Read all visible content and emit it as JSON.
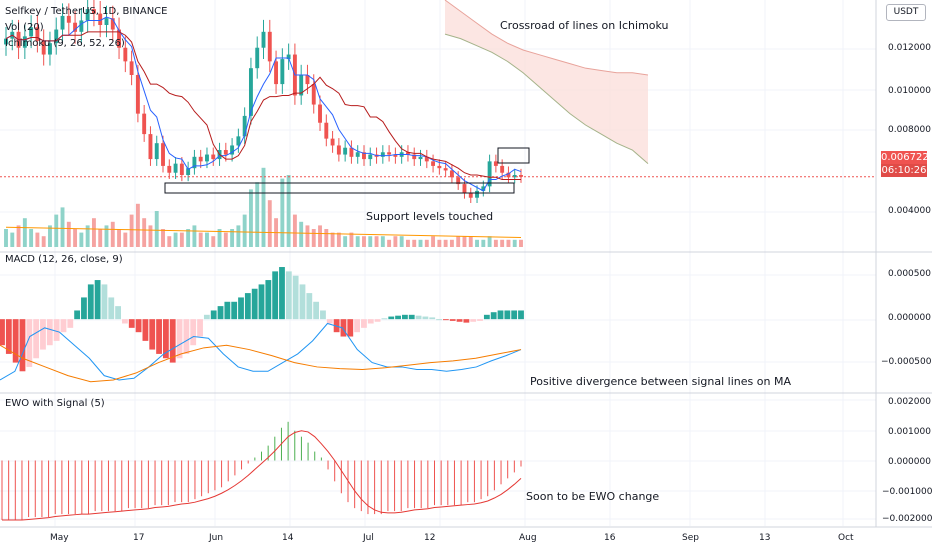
{
  "header": {
    "symbol": "Selfkey / TetherUS, 1D, BINANCE",
    "volume_label": "Vol (20)",
    "ichimoku_label": "Ichimoku (9, 26, 52, 26)",
    "currency": "USDT"
  },
  "price_axis": {
    "ticks": [
      "0.012000",
      "0.010000",
      "0.008000",
      "0.004000"
    ],
    "last_price": "0.006722",
    "countdown": "06:10:26"
  },
  "macd_axis": {
    "ticks": [
      "0.000500",
      "0.000000",
      "−0.000500"
    ]
  },
  "ewo_axis": {
    "ticks": [
      "0.002000",
      "0.001000",
      "0.000000",
      "−0.001000",
      "−0.002000"
    ]
  },
  "time_axis": [
    "May",
    "17",
    "Jun",
    "14",
    "Jul",
    "12",
    "Aug",
    "16",
    "Sep",
    "13",
    "Oct"
  ],
  "macd_label": "MACD (12, 26, close, 9)",
  "ewo_label": "EWO with Signal (5)",
  "annotations": {
    "ichimoku": "Crossroad of lines on Ichimoku",
    "support": "Support levels touched",
    "divergence": "Positive divergence between signal lines on MA",
    "ewo": "Soon to be EWO change"
  },
  "colors": {
    "up": "#26a69a",
    "down": "#ef5350",
    "cloud": "#fbe0dc",
    "tenkan": "#2962ff",
    "kijun": "#b71c1c",
    "signal": "#f57c00",
    "macd_line": "#2196f3",
    "ewo_up": "#4caf50",
    "ewo_down": "#ef5350"
  },
  "chart_data": [
    {
      "type": "candlestick",
      "title": "Selfkey / TetherUS, 1D, BINANCE",
      "x_range": [
        "2021-04-24",
        "2021-10-08"
      ],
      "y_range": [
        0.0035,
        0.0145
      ],
      "last_price": 0.006722,
      "close_series": [
        0.0128,
        0.0131,
        0.0124,
        0.0129,
        0.0133,
        0.0127,
        0.0121,
        0.0126,
        0.0132,
        0.0138,
        0.0135,
        0.0131,
        0.0136,
        0.0141,
        0.0139,
        0.0134,
        0.0137,
        0.0132,
        0.0124,
        0.0118,
        0.0112,
        0.0095,
        0.0086,
        0.0075,
        0.0082,
        0.0072,
        0.0069,
        0.0073,
        0.0068,
        0.0071,
        0.0076,
        0.0074,
        0.0077,
        0.0075,
        0.0079,
        0.0077,
        0.0081,
        0.0085,
        0.0094,
        0.0115,
        0.0124,
        0.0131,
        0.0118,
        0.0108,
        0.0119,
        0.0121,
        0.0103,
        0.0112,
        0.0108,
        0.0099,
        0.0091,
        0.0084,
        0.0081,
        0.0077,
        0.008,
        0.0076,
        0.0078,
        0.0075,
        0.0077,
        0.0076,
        0.0078,
        0.0077,
        0.0076,
        0.0078,
        0.0077,
        0.0075,
        0.0076,
        0.0074,
        0.0072,
        0.0071,
        0.007,
        0.0067,
        0.0064,
        0.006,
        0.0058,
        0.0061,
        0.0063,
        0.0074,
        0.0072,
        0.0069,
        0.0067,
        0.0068,
        0.00672
      ],
      "volume_series": [
        5,
        4,
        6,
        8,
        5,
        4,
        3,
        6,
        9,
        11,
        7,
        5,
        4,
        6,
        8,
        5,
        6,
        7,
        5,
        4,
        9,
        12,
        8,
        6,
        10,
        5,
        3,
        4,
        4,
        5,
        6,
        4,
        4,
        3,
        5,
        4,
        5,
        6,
        9,
        16,
        18,
        22,
        13,
        8,
        19,
        20,
        9,
        7,
        6,
        5,
        6,
        5,
        4,
        4,
        3,
        4,
        3,
        3,
        3,
        3,
        3,
        2,
        3,
        3,
        2,
        2,
        2,
        2,
        3,
        2,
        2,
        2,
        3,
        3,
        3,
        2,
        2,
        3,
        2,
        2,
        2,
        2,
        2
      ],
      "ichimoku": "Ichimoku (9, 26, 52, 26)"
    },
    {
      "type": "histogram",
      "title": "MACD (12, 26, close, 9)",
      "y_range": [
        -0.00085,
        0.00075
      ],
      "histogram": [
        -0.0003,
        -0.0004,
        -0.0005,
        -0.0006,
        -0.00055,
        -0.00045,
        -0.00035,
        -0.0003,
        -0.00025,
        -0.00015,
        -0.0001,
        0.0001,
        0.00025,
        0.0004,
        0.00045,
        0.0004,
        0.00025,
        0.00015,
        -5e-05,
        -0.0001,
        -0.00015,
        -0.00025,
        -0.00035,
        -0.0004,
        -0.00045,
        -0.0005,
        -0.00045,
        -0.0004,
        -0.0003,
        -0.0002,
        5e-05,
        0.0001,
        0.00015,
        0.0002,
        0.0002,
        0.00025,
        0.0003,
        0.00035,
        0.0004,
        0.00045,
        0.00055,
        0.0006,
        0.00055,
        0.0005,
        0.0004,
        0.0003,
        0.0002,
        0.0001,
        -5e-05,
        -0.00015,
        -0.0002,
        -0.0002,
        -0.00015,
        -0.0001,
        -5e-05,
        -3e-05,
        1e-05,
        3e-05,
        4e-05,
        5e-05,
        5e-05,
        4e-05,
        3e-05,
        2e-05,
        0.0,
        -1e-05,
        -2e-05,
        -3e-05,
        -4e-05,
        -3e-05,
        -2e-05,
        5e-05,
        8e-05,
        0.0001,
        0.0001,
        0.0001,
        0.0001
      ],
      "macd_line": [
        -0.0007,
        -0.0006,
        -0.0002,
        -0.0001,
        -0.00015,
        -0.0003,
        -0.00045,
        -0.00065,
        -0.0007,
        -0.00068,
        -0.00055,
        -0.0004,
        -0.0003,
        -0.0002,
        -0.00022,
        -0.0004,
        -0.00055,
        -0.0006,
        -0.0006,
        -0.0005,
        -0.0004,
        -0.00025,
        -5e-05,
        -0.0001,
        -0.00035,
        -0.0005,
        -0.00055,
        -0.00055,
        -0.00058,
        -0.00058,
        -0.0006,
        -0.00058,
        -0.00055,
        -0.00048,
        -0.00042,
        -0.00035
      ],
      "signal_line": [
        -0.0003,
        -0.00045,
        -0.00055,
        -0.00065,
        -0.00072,
        -0.0007,
        -0.00062,
        -0.0005,
        -0.0004,
        -0.00033,
        -0.0003,
        -0.00035,
        -0.00042,
        -0.0005,
        -0.00055,
        -0.00057,
        -0.00058,
        -0.00056,
        -0.00053,
        -0.0005,
        -0.00048,
        -0.00045,
        -0.0004,
        -0.00035
      ]
    },
    {
      "type": "histogram",
      "title": "EWO with Signal (5)",
      "y_range": [
        -0.0022,
        0.0022
      ],
      "histogram": [
        -0.002,
        -0.002,
        -0.002,
        -0.002,
        -0.0019,
        -0.0019,
        -0.0019,
        -0.0019,
        -0.0018,
        -0.0018,
        -0.0018,
        -0.0018,
        -0.0018,
        -0.0018,
        -0.0017,
        -0.0017,
        -0.0017,
        -0.0017,
        -0.0017,
        -0.0016,
        -0.0016,
        -0.0016,
        -0.0016,
        -0.0015,
        -0.0015,
        -0.0015,
        -0.0014,
        -0.0014,
        -0.0014,
        -0.0013,
        -0.0012,
        -0.0011,
        -0.001,
        -0.0009,
        -0.0007,
        -0.0005,
        -0.0003,
        -0.0001,
        0.0001,
        0.0003,
        0.0005,
        0.0008,
        0.0011,
        0.0013,
        0.001,
        0.0008,
        0.0006,
        0.0003,
        0.0001,
        -0.0003,
        -0.0007,
        -0.0011,
        -0.0014,
        -0.0016,
        -0.0017,
        -0.0018,
        -0.0018,
        -0.0018,
        -0.0017,
        -0.0017,
        -0.0017,
        -0.0016,
        -0.0016,
        -0.0016,
        -0.0016,
        -0.0015,
        -0.0015,
        -0.0015,
        -0.0015,
        -0.0015,
        -0.0014,
        -0.0014,
        -0.0013,
        -0.0012,
        -0.001,
        -0.0008,
        -0.0006,
        -0.0004,
        -0.0002
      ]
    }
  ]
}
